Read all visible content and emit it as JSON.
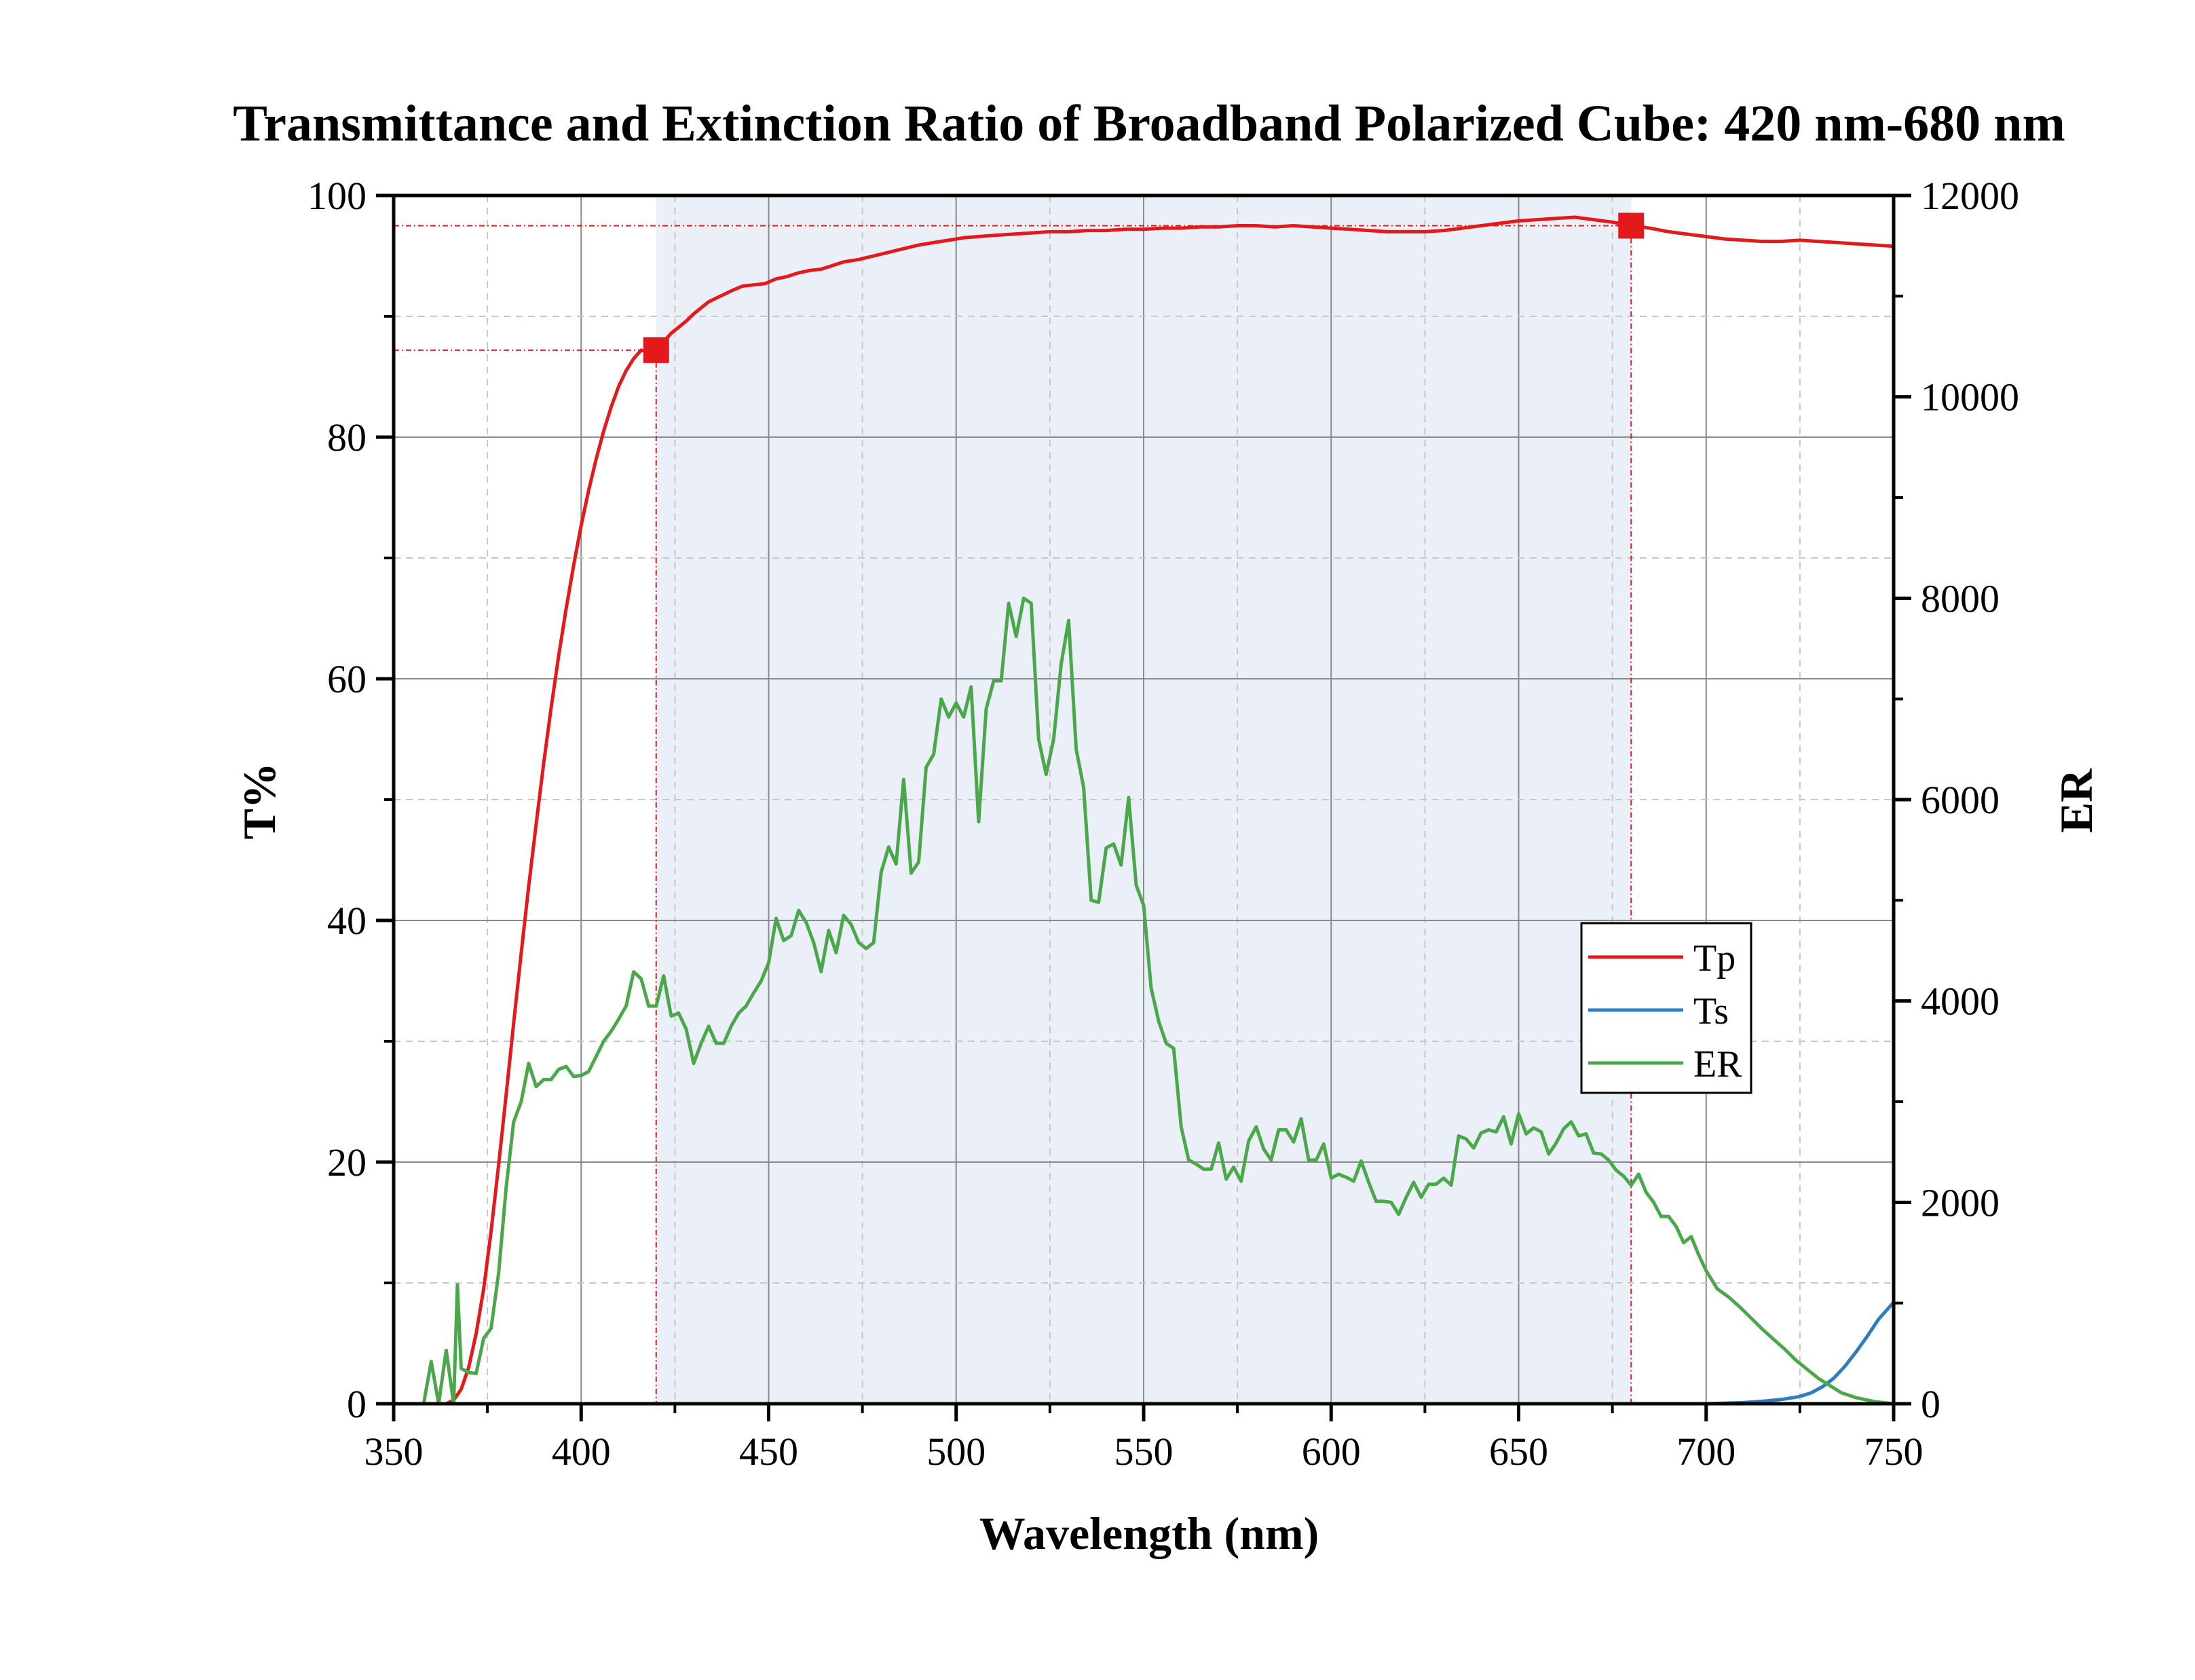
{
  "chart_data": {
    "type": "line",
    "title": "Transmittance and Extinction Ratio of Broadband Polarized Cube: 420 nm-680 nm",
    "xlabel": "Wavelength (nm)",
    "ylabel": "T%",
    "ylabel_right": "ER",
    "xlim": [
      350,
      750
    ],
    "ylim": [
      0,
      100
    ],
    "ylim_right": [
      0,
      12000
    ],
    "x_ticks": [
      "350",
      "400",
      "450",
      "500",
      "550",
      "600",
      "650",
      "700",
      "750"
    ],
    "y_ticks": [
      "0",
      "20",
      "40",
      "60",
      "80",
      "100"
    ],
    "y_ticks_right": [
      "0",
      "2000",
      "4000",
      "6000",
      "8000",
      "10000",
      "12000"
    ],
    "grid": true,
    "legend_position": "right, middle",
    "highlight_band": [
      420,
      680
    ],
    "markers": [
      {
        "x": 420,
        "y": 87.2
      },
      {
        "x": 680,
        "y": 97.5
      }
    ],
    "series": [
      {
        "name": "Tp",
        "axis": "left",
        "color": "#e31a1c",
        "x": [
          350,
          360,
          364,
          366,
          368,
          370,
          372,
          374,
          376,
          378,
          380,
          382,
          384,
          386,
          388,
          390,
          392,
          394,
          396,
          398,
          400,
          402,
          404,
          406,
          408,
          410,
          412,
          414,
          416,
          418,
          420,
          422,
          424,
          426,
          428,
          430,
          432,
          434,
          436,
          438,
          440,
          443,
          446,
          449,
          452,
          455,
          458,
          461,
          464,
          467,
          470,
          474,
          478,
          482,
          486,
          490,
          494,
          498,
          502,
          506,
          510,
          515,
          520,
          525,
          530,
          535,
          540,
          545,
          550,
          555,
          560,
          565,
          570,
          575,
          580,
          585,
          590,
          595,
          600,
          605,
          610,
          615,
          620,
          625,
          630,
          635,
          640,
          645,
          650,
          655,
          660,
          665,
          670,
          675,
          680,
          685,
          690,
          695,
          700,
          705,
          710,
          715,
          720,
          725,
          730,
          735,
          740,
          745,
          750
        ],
        "values": [
          0,
          0,
          0,
          0.3,
          1.2,
          3.0,
          5.8,
          9.5,
          14.3,
          19.8,
          25.6,
          31.5,
          37.3,
          42.8,
          48.0,
          53.0,
          57.6,
          61.9,
          65.8,
          69.4,
          72.7,
          75.6,
          78.2,
          80.5,
          82.5,
          84.2,
          85.5,
          86.5,
          87.2,
          87.0,
          87.2,
          87.9,
          88.6,
          89.1,
          89.6,
          90.2,
          90.7,
          91.2,
          91.5,
          91.8,
          92.1,
          92.5,
          92.6,
          92.7,
          93.1,
          93.3,
          93.6,
          93.8,
          93.9,
          94.2,
          94.5,
          94.7,
          95.0,
          95.3,
          95.6,
          95.9,
          96.1,
          96.3,
          96.5,
          96.6,
          96.7,
          96.8,
          96.9,
          97.0,
          97.0,
          97.1,
          97.1,
          97.2,
          97.2,
          97.3,
          97.3,
          97.4,
          97.4,
          97.5,
          97.5,
          97.4,
          97.5,
          97.4,
          97.3,
          97.2,
          97.1,
          97.0,
          97.0,
          97.0,
          97.1,
          97.3,
          97.5,
          97.7,
          97.9,
          98.0,
          98.1,
          98.2,
          98.0,
          97.8,
          97.5,
          97.3,
          97.0,
          96.8,
          96.6,
          96.4,
          96.3,
          96.2,
          96.2,
          96.3,
          96.2,
          96.1,
          96.0,
          95.9,
          95.8
        ]
      },
      {
        "name": "Ts",
        "axis": "left",
        "color": "#2e7cc0",
        "x": [
          350,
          500,
          690,
          700,
          705,
          710,
          715,
          720,
          725,
          728,
          731,
          734,
          737,
          740,
          743,
          746,
          750
        ],
        "values": [
          0,
          0,
          0,
          0,
          0.05,
          0.1,
          0.2,
          0.35,
          0.6,
          0.9,
          1.4,
          2.1,
          3.1,
          4.3,
          5.6,
          7.0,
          8.4
        ]
      },
      {
        "name": "ER",
        "axis": "right",
        "color": "#4aa84a",
        "x": [
          350,
          356,
          358,
          360,
          362,
          364,
          366,
          367,
          368,
          370,
          372,
          374,
          376,
          378,
          380,
          382,
          384,
          386,
          388,
          390,
          392,
          394,
          396,
          398,
          400,
          402,
          404,
          406,
          408,
          410,
          412,
          414,
          416,
          418,
          420,
          422,
          424,
          426,
          428,
          430,
          432,
          434,
          436,
          438,
          440,
          442,
          444,
          446,
          448,
          450,
          452,
          454,
          456,
          458,
          460,
          462,
          464,
          466,
          468,
          470,
          472,
          474,
          476,
          478,
          480,
          482,
          484,
          486,
          488,
          490,
          492,
          494,
          496,
          498,
          500,
          502,
          504,
          506,
          508,
          510,
          512,
          514,
          516,
          518,
          520,
          522,
          524,
          526,
          528,
          530,
          532,
          534,
          536,
          538,
          540,
          542,
          544,
          546,
          548,
          550,
          552,
          554,
          556,
          558,
          560,
          562,
          564,
          566,
          568,
          570,
          572,
          574,
          576,
          578,
          580,
          582,
          584,
          586,
          588,
          590,
          592,
          594,
          596,
          598,
          600,
          602,
          604,
          606,
          608,
          610,
          612,
          614,
          616,
          618,
          620,
          622,
          624,
          626,
          628,
          630,
          632,
          634,
          636,
          638,
          640,
          642,
          644,
          646,
          648,
          650,
          652,
          654,
          656,
          658,
          660,
          662,
          664,
          666,
          668,
          670,
          672,
          674,
          676,
          678,
          680,
          682,
          684,
          686,
          688,
          690,
          692,
          694,
          696,
          698,
          700,
          703,
          706,
          709,
          712,
          715,
          718,
          721,
          724,
          727,
          730,
          733,
          736,
          740,
          745,
          750
        ],
        "values": [
          0,
          0,
          0,
          420,
          0,
          530,
          0,
          1180,
          350,
          310,
          300,
          650,
          750,
          1300,
          2150,
          2800,
          3000,
          3380,
          3150,
          3220,
          3220,
          3320,
          3350,
          3250,
          3260,
          3300,
          3450,
          3600,
          3700,
          3820,
          3950,
          4290,
          4220,
          3950,
          3950,
          4250,
          3850,
          3880,
          3720,
          3380,
          3580,
          3750,
          3580,
          3580,
          3750,
          3880,
          3950,
          4080,
          4200,
          4380,
          4820,
          4600,
          4650,
          4900,
          4780,
          4580,
          4290,
          4700,
          4480,
          4850,
          4760,
          4580,
          4520,
          4580,
          5280,
          5530,
          5360,
          6200,
          5270,
          5380,
          6320,
          6450,
          7000,
          6820,
          6960,
          6820,
          7120,
          5780,
          6900,
          7180,
          7180,
          7950,
          7620,
          8000,
          7950,
          6600,
          6250,
          6600,
          7350,
          7780,
          6500,
          6120,
          5000,
          4980,
          5520,
          5560,
          5350,
          6020,
          5150,
          4950,
          4130,
          3800,
          3580,
          3530,
          2750,
          2420,
          2380,
          2330,
          2330,
          2590,
          2230,
          2350,
          2210,
          2610,
          2750,
          2530,
          2420,
          2720,
          2720,
          2600,
          2830,
          2420,
          2420,
          2580,
          2240,
          2280,
          2250,
          2210,
          2410,
          2200,
          2010,
          2010,
          2000,
          1880,
          2050,
          2200,
          2050,
          2180,
          2180,
          2240,
          2170,
          2660,
          2630,
          2540,
          2690,
          2720,
          2700,
          2850,
          2580,
          2880,
          2680,
          2740,
          2700,
          2480,
          2590,
          2730,
          2800,
          2660,
          2680,
          2490,
          2480,
          2420,
          2320,
          2260,
          2170,
          2280,
          2100,
          2000,
          1860,
          1860,
          1760,
          1600,
          1660,
          1480,
          1320,
          1140,
          1060,
          960,
          850,
          740,
          640,
          540,
          430,
          340,
          250,
          180,
          110,
          60,
          20,
          0
        ]
      }
    ]
  }
}
